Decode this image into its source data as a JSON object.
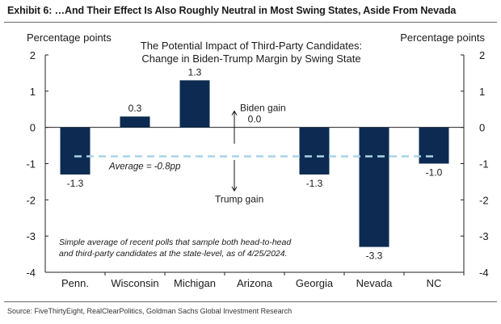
{
  "header": {
    "title": "Exhibit 6: …And Their Effect Is Also Roughly Neutral in Most Swing States, Aside From Nevada"
  },
  "source": "Source: FiveThirtyEight, RealClearPolitics, Goldman Sachs Global Investment Research",
  "chart_data": {
    "type": "bar",
    "title": "The Potential Impact of Third-Party Candidates:",
    "subtitle": "Change in Biden-Trump Margin by Swing State",
    "ylabel_left": "Percentage points",
    "ylabel_right": "Percentage points",
    "ylim": [
      -4,
      2
    ],
    "yticks": [
      2,
      1,
      0,
      -1,
      -2,
      -3,
      -4
    ],
    "ytick_labels": [
      "2",
      "1",
      "0",
      "-1",
      "-2",
      "-3",
      "-4"
    ],
    "categories": [
      "Penn.",
      "Wisconsin",
      "Michigan",
      "Arizona",
      "Georgia",
      "Nevada",
      "NC"
    ],
    "values": [
      -1.3,
      0.3,
      1.3,
      0.0,
      -1.3,
      -3.3,
      -1.0
    ],
    "data_labels": [
      "-1.3",
      "0.3",
      "1.3",
      "0.0",
      "-1.3",
      "-3.3",
      "-1.0"
    ],
    "bar_color": "#0d2b52",
    "average": {
      "value": -0.8,
      "label": "Average = -0.8pp",
      "color": "#a9d3e6"
    },
    "annotations": {
      "up_label": "Biden gain",
      "down_label": "Trump gain",
      "note_line1": "Simple average of recent polls that sample both head-to-head",
      "note_line2": "and third-party candidates at the state-level, as of 4/25/2024."
    },
    "grid": false
  }
}
